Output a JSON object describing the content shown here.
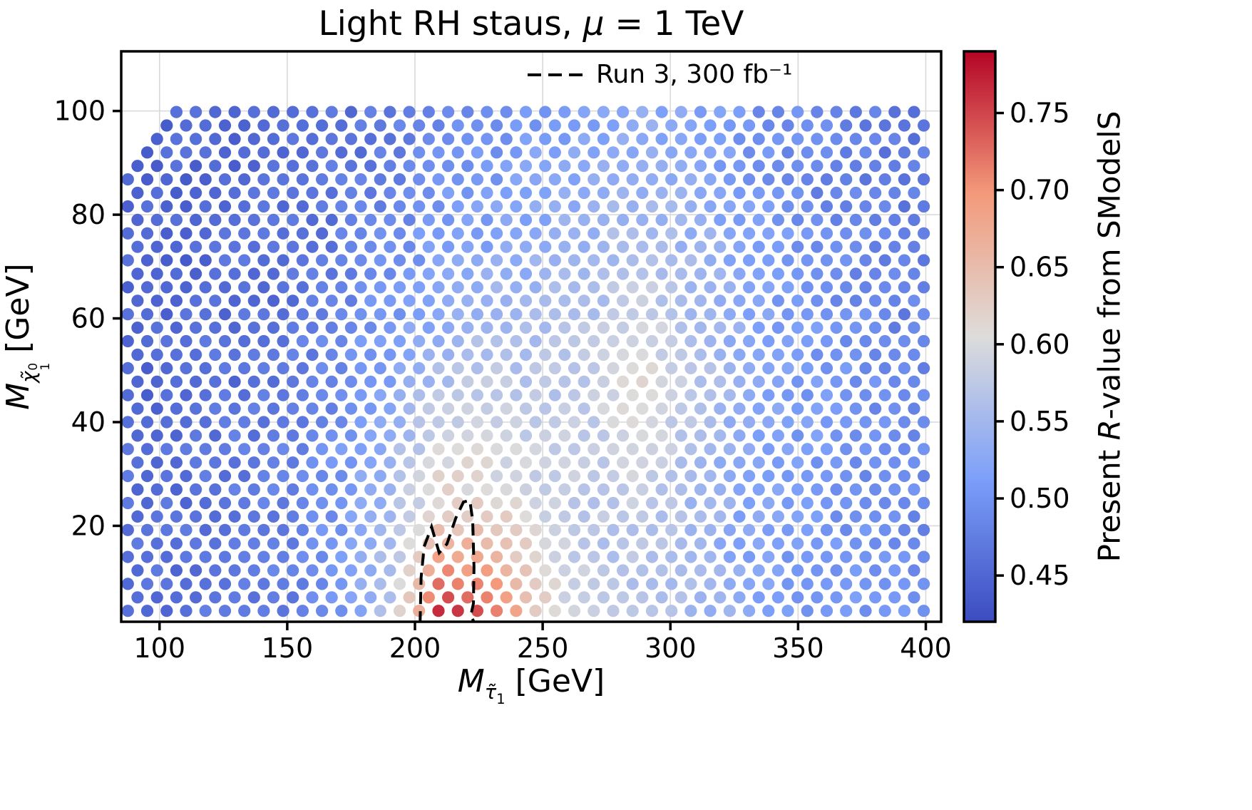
{
  "title": {
    "part1": "Light RH staus, ",
    "mu": "μ",
    "part2": " = 1 TeV"
  },
  "legend": {
    "label": "Run 3, 300 fb⁻¹"
  },
  "xlabel": {
    "m": "M",
    "sub": "τ̃",
    "idx": "1",
    "unit": " [GeV]"
  },
  "ylabel": {
    "m": "M",
    "sub": "χ̃",
    "sup": "0",
    "idx": "1",
    "unit": " [GeV]"
  },
  "colorbar": {
    "vmin": 0.42,
    "vmax": 0.79,
    "ticks": [
      0.45,
      0.5,
      0.55,
      0.6,
      0.65,
      0.7,
      0.75
    ],
    "label": {
      "part1": "Present ",
      "italic": "R",
      "part2": "-value from SModelS"
    }
  },
  "chart_data": {
    "type": "scatter",
    "title": "Light RH staus, mu = 1 TeV",
    "xlabel": "M_stau1 [GeV]",
    "ylabel": "M_neutralino1 [GeV]",
    "color_quantity": "Present R-value from SModelS",
    "x_range": [
      85,
      406
    ],
    "y_range": [
      1.5,
      111.5
    ],
    "x_ticks": [
      100,
      150,
      200,
      250,
      300,
      350,
      400
    ],
    "y_ticks": [
      20,
      40,
      60,
      80,
      100
    ],
    "grid": true,
    "colormap": "coolwarm",
    "colormap_anchors": [
      [
        0.0,
        59,
        76,
        192
      ],
      [
        0.25,
        124,
        159,
        249
      ],
      [
        0.5,
        221,
        220,
        219
      ],
      [
        0.75,
        244,
        154,
        123
      ],
      [
        1.0,
        180,
        4,
        38
      ]
    ],
    "lattice": {
      "x0": 87.6,
      "dx": 7.6,
      "row_offset": 3.8,
      "y0": 3.6,
      "dy": 2.6,
      "x_max": 402.5,
      "y_max": 100.6,
      "dot_radius_px": 8.6,
      "top_left_cut": {
        "x_end": 104.5,
        "slope": 0.625
      }
    },
    "value_grid": {
      "x": [
        90,
        110,
        130,
        150,
        170,
        190,
        210,
        230,
        250,
        270,
        290,
        310,
        330,
        350,
        370,
        390
      ],
      "y": [
        5,
        15,
        25,
        35,
        45,
        55,
        65,
        75,
        85,
        95
      ],
      "values": [
        [
          0.46,
          0.46,
          0.47,
          0.47,
          0.5,
          0.57,
          0.76,
          0.73,
          0.62,
          0.58,
          0.56,
          0.55,
          0.53,
          0.51,
          0.5,
          0.5
        ],
        [
          0.46,
          0.46,
          0.47,
          0.48,
          0.5,
          0.56,
          0.68,
          0.66,
          0.6,
          0.57,
          0.57,
          0.55,
          0.52,
          0.51,
          0.5,
          0.49
        ],
        [
          0.46,
          0.46,
          0.47,
          0.48,
          0.5,
          0.55,
          0.62,
          0.61,
          0.59,
          0.57,
          0.58,
          0.55,
          0.52,
          0.51,
          0.5,
          0.49
        ],
        [
          0.46,
          0.46,
          0.47,
          0.48,
          0.5,
          0.54,
          0.6,
          0.6,
          0.58,
          0.58,
          0.6,
          0.56,
          0.52,
          0.51,
          0.5,
          0.49
        ],
        [
          0.45,
          0.46,
          0.46,
          0.47,
          0.49,
          0.52,
          0.57,
          0.58,
          0.57,
          0.58,
          0.62,
          0.57,
          0.53,
          0.51,
          0.5,
          0.49
        ],
        [
          0.45,
          0.46,
          0.46,
          0.47,
          0.49,
          0.51,
          0.54,
          0.56,
          0.56,
          0.57,
          0.6,
          0.56,
          0.53,
          0.51,
          0.5,
          0.48
        ],
        [
          0.45,
          0.45,
          0.46,
          0.46,
          0.48,
          0.5,
          0.52,
          0.54,
          0.55,
          0.56,
          0.58,
          0.55,
          0.52,
          0.5,
          0.49,
          0.48
        ],
        [
          0.45,
          0.45,
          0.46,
          0.46,
          0.47,
          0.49,
          0.51,
          0.52,
          0.53,
          0.55,
          0.56,
          0.54,
          0.52,
          0.5,
          0.49,
          0.48
        ],
        [
          0.45,
          0.45,
          0.45,
          0.46,
          0.47,
          0.48,
          0.5,
          0.51,
          0.52,
          0.53,
          0.54,
          0.53,
          0.51,
          0.49,
          0.48,
          0.47
        ],
        [
          0.45,
          0.45,
          0.45,
          0.46,
          0.46,
          0.47,
          0.49,
          0.5,
          0.51,
          0.52,
          0.53,
          0.52,
          0.5,
          0.49,
          0.48,
          0.47
        ]
      ]
    },
    "contour": {
      "label": "Run 3, 300 fb⁻¹",
      "style": "dashed",
      "color": "#000000",
      "points": [
        [
          202.0,
          1.2
        ],
        [
          202.4,
          10.0
        ],
        [
          203.6,
          16.0
        ],
        [
          206.5,
          19.8
        ],
        [
          209.5,
          14.8
        ],
        [
          212.5,
          16.5
        ],
        [
          216.0,
          21.5
        ],
        [
          219.0,
          24.6
        ],
        [
          221.5,
          24.9
        ],
        [
          222.6,
          21.0
        ],
        [
          223.1,
          12.0
        ],
        [
          222.9,
          5.0
        ],
        [
          221.8,
          2.6
        ],
        [
          223.5,
          1.2
        ]
      ]
    }
  }
}
